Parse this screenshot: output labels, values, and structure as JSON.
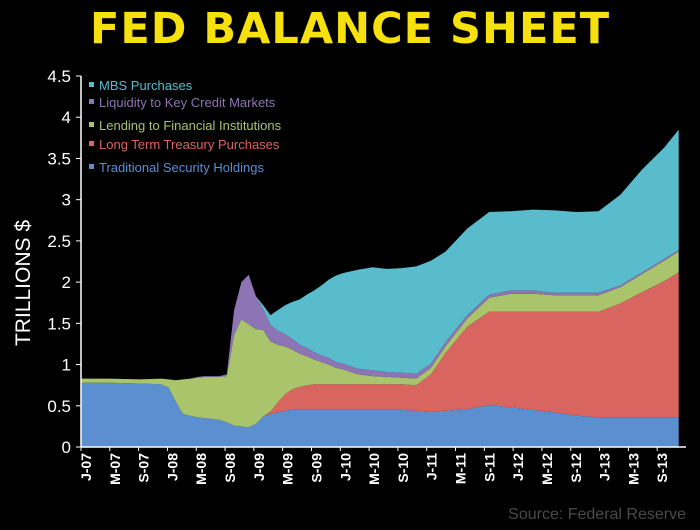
{
  "chart_data": {
    "type": "area",
    "stacked": true,
    "title": "FED BALANCE SHEET",
    "ylabel": "TRILLIONS $",
    "xlabel": "",
    "ylim": [
      0,
      4.5
    ],
    "yticks": [
      "0",
      "0.5",
      "1",
      "1.5",
      "2",
      "2.5",
      "3",
      "3.5",
      "4",
      "4.5"
    ],
    "x_tick_labels": [
      "J-07",
      "M-07",
      "S-07",
      "J-08",
      "M-08",
      "S-08",
      "J-09",
      "M-09",
      "S-09",
      "J-10",
      "M-10",
      "S-10",
      "J-11",
      "M-11",
      "S-11",
      "J-12",
      "M-12",
      "S-12",
      "J-13",
      "M-13",
      "S-13"
    ],
    "x": [
      "2007-01",
      "2007-05",
      "2007-09",
      "2007-12",
      "2008-01",
      "2008-02",
      "2008-03",
      "2008-04",
      "2008-05",
      "2008-06",
      "2008-07",
      "2008-08",
      "2008-09",
      "2008-10",
      "2008-11",
      "2008-12",
      "2009-01",
      "2009-02",
      "2009-03",
      "2009-04",
      "2009-05",
      "2009-06",
      "2009-07",
      "2009-08",
      "2009-09",
      "2009-10",
      "2009-11",
      "2009-12",
      "2010-01",
      "2010-02",
      "2010-03",
      "2010-05",
      "2010-07",
      "2010-09",
      "2010-11",
      "2011-01",
      "2011-03",
      "2011-06",
      "2011-09",
      "2011-12",
      "2012-03",
      "2012-06",
      "2012-09",
      "2012-12",
      "2013-03",
      "2013-06",
      "2013-09",
      "2013-11"
    ],
    "series": [
      {
        "name": "Traditional Security Holdings",
        "color": "#5b8fd0",
        "values": [
          0.78,
          0.78,
          0.77,
          0.76,
          0.72,
          0.55,
          0.4,
          0.38,
          0.36,
          0.35,
          0.34,
          0.33,
          0.3,
          0.26,
          0.25,
          0.24,
          0.28,
          0.37,
          0.4,
          0.42,
          0.44,
          0.45,
          0.45,
          0.45,
          0.45,
          0.45,
          0.45,
          0.45,
          0.45,
          0.45,
          0.45,
          0.45,
          0.45,
          0.45,
          0.44,
          0.43,
          0.44,
          0.46,
          0.51,
          0.48,
          0.45,
          0.42,
          0.38,
          0.36,
          0.36,
          0.36,
          0.36,
          0.36
        ]
      },
      {
        "name": "Long Term Treasury Purchases",
        "color": "#d86560",
        "values": [
          0,
          0,
          0,
          0,
          0,
          0,
          0,
          0,
          0,
          0,
          0,
          0,
          0,
          0,
          0,
          0,
          0,
          0,
          0.03,
          0.12,
          0.2,
          0.25,
          0.28,
          0.3,
          0.31,
          0.31,
          0.31,
          0.31,
          0.31,
          0.31,
          0.31,
          0.31,
          0.31,
          0.31,
          0.31,
          0.45,
          0.7,
          1.0,
          1.13,
          1.16,
          1.19,
          1.22,
          1.26,
          1.28,
          1.38,
          1.52,
          1.65,
          1.76
        ]
      },
      {
        "name": "Lending to Financial Institutions",
        "color": "#a9c46b",
        "values": [
          0.05,
          0.05,
          0.05,
          0.07,
          0.1,
          0.26,
          0.42,
          0.45,
          0.48,
          0.5,
          0.51,
          0.52,
          0.56,
          1.1,
          1.3,
          1.25,
          1.15,
          1.05,
          0.85,
          0.7,
          0.58,
          0.48,
          0.4,
          0.35,
          0.3,
          0.27,
          0.24,
          0.2,
          0.18,
          0.15,
          0.12,
          0.1,
          0.09,
          0.08,
          0.08,
          0.08,
          0.08,
          0.1,
          0.17,
          0.22,
          0.22,
          0.2,
          0.2,
          0.2,
          0.2,
          0.22,
          0.25,
          0.25
        ]
      },
      {
        "name": "Liquidity to Key Credit Markets",
        "color": "#8d75b5",
        "values": [
          0,
          0,
          0,
          0,
          0,
          0,
          0,
          0,
          0.01,
          0.01,
          0.01,
          0.01,
          0.02,
          0.3,
          0.45,
          0.6,
          0.4,
          0.25,
          0.2,
          0.17,
          0.15,
          0.13,
          0.11,
          0.1,
          0.09,
          0.08,
          0.08,
          0.07,
          0.07,
          0.07,
          0.07,
          0.07,
          0.06,
          0.06,
          0.06,
          0.05,
          0.05,
          0.04,
          0.04,
          0.04,
          0.04,
          0.03,
          0.03,
          0.03,
          0.02,
          0.02,
          0.02,
          0.02
        ]
      },
      {
        "name": "MBS Purchases",
        "color": "#58bccd",
        "values": [
          0,
          0,
          0,
          0,
          0,
          0,
          0,
          0,
          0,
          0,
          0,
          0,
          0,
          0,
          0,
          0,
          0,
          0.05,
          0.12,
          0.25,
          0.35,
          0.45,
          0.55,
          0.65,
          0.75,
          0.85,
          0.95,
          1.05,
          1.1,
          1.15,
          1.2,
          1.25,
          1.25,
          1.27,
          1.3,
          1.25,
          1.1,
          1.05,
          1.0,
          0.96,
          0.98,
          1.0,
          0.98,
          0.99,
          1.1,
          1.25,
          1.35,
          1.46
        ]
      }
    ],
    "legend": {
      "placement": "top-left",
      "order": [
        "MBS Purchases",
        "Liquidity to Key Credit Markets",
        "Lending to Financial Institutions",
        "Long Term Treasury Purchases",
        "Traditional Security Holdings"
      ]
    },
    "grid": false,
    "background": "#000000"
  },
  "source": "Source: Federal Reserve"
}
